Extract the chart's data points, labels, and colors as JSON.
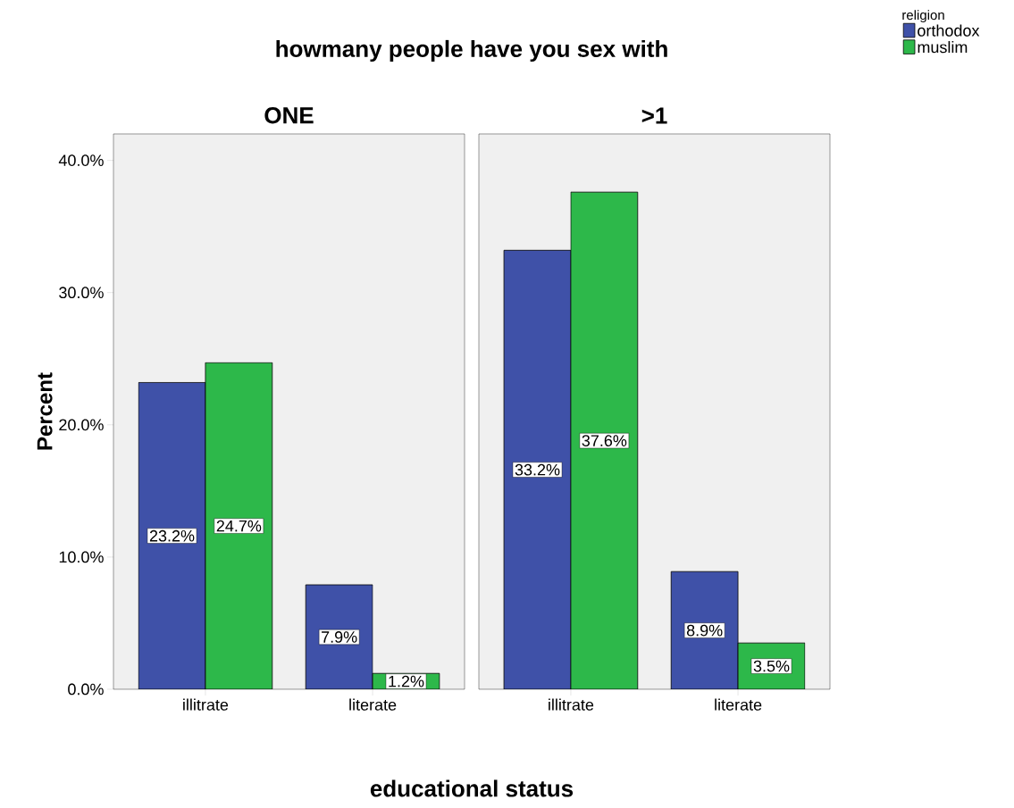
{
  "chart_data": [
    {
      "type": "bar",
      "title": "howmany people have you sex with",
      "subtitle": "ONE",
      "xlabel": "educational status",
      "ylabel": "Percent",
      "categories": [
        "illitrate",
        "literate"
      ],
      "series": [
        {
          "color": "#3f51a8",
          "values": [
            23.2,
            7.9
          ],
          "value_labels": [
            "23.2%",
            "7.9%"
          ]
        },
        {
          "color": "#2db84a",
          "values": [
            24.7,
            1.2
          ],
          "value_labels": [
            "24.7%",
            "1.2%"
          ]
        }
      ],
      "ylim": [
        0,
        42
      ],
      "yticks": [
        {
          "value": 0,
          "label": "0.0%"
        },
        {
          "value": 10,
          "label": "10.0%"
        },
        {
          "value": 20,
          "label": "20.0%"
        },
        {
          "value": 30,
          "label": "30.0%"
        },
        {
          "value": 40,
          "label": "40.0%"
        }
      ]
    },
    {
      "type": "bar",
      "subtitle": ">1",
      "legend_title": "religion",
      "legend": "top right",
      "tick_labels": "x",
      "categories": [
        "illitrate",
        "literate"
      ],
      "series": [
        {
          "name": "orthodox",
          "color": "#3f51a8",
          "values": [
            33.2,
            8.9
          ],
          "value_labels": [
            "33.2%",
            "8.9%"
          ]
        },
        {
          "name": "muslim",
          "color": "#2db84a",
          "values": [
            37.6,
            3.5
          ],
          "value_labels": [
            "37.6%",
            "3.5%"
          ]
        }
      ],
      "ylim": [
        0,
        42
      ]
    }
  ]
}
